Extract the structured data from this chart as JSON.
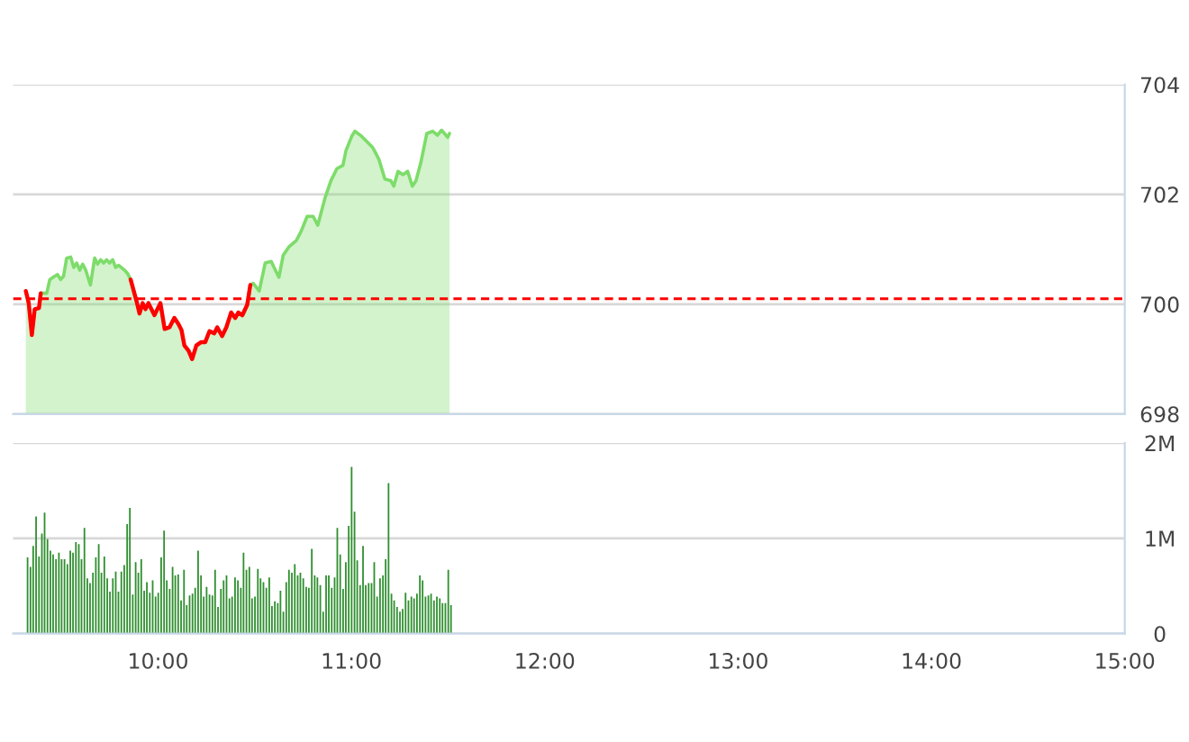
{
  "chart_data": [
    {
      "type": "area",
      "xlim": [
        9.25,
        15
      ],
      "ylim": [
        698,
        704
      ],
      "yticks": [
        698,
        700,
        702,
        704
      ],
      "tick_labels": "y",
      "grid": "y",
      "ref_lines": [
        {
          "axis": "y",
          "value": 700.1,
          "color": "#ff0000",
          "line_style": "dashed"
        }
      ],
      "series": [
        {
          "color": "#7ddc6a",
          "x": [
            9.316,
            9.331,
            9.347,
            9.362,
            9.384,
            9.393,
            9.424,
            9.44,
            9.465,
            9.48,
            9.496,
            9.511,
            9.527,
            9.548,
            9.564,
            9.579,
            9.595,
            9.61,
            9.626,
            9.65,
            9.672,
            9.687,
            9.703,
            9.718,
            9.734,
            9.749,
            9.765,
            9.78,
            9.796,
            9.827,
            9.842,
            9.858,
            9.889,
            9.904,
            9.92,
            9.935,
            9.95,
            9.981,
            10.012,
            10.034,
            10.059,
            10.084,
            10.105,
            10.121,
            10.136,
            10.158,
            10.176,
            10.198,
            10.223,
            10.244,
            10.266,
            10.291,
            10.306,
            10.331,
            10.353,
            10.378,
            10.399,
            10.415,
            10.436,
            10.461,
            10.477,
            10.492,
            10.523,
            10.554,
            10.585,
            10.6,
            10.625,
            10.647,
            10.678,
            10.715,
            10.74,
            10.771,
            10.802,
            10.826,
            10.863,
            10.894,
            10.925,
            10.956,
            10.972,
            11.003,
            11.018,
            11.049,
            11.08,
            11.111,
            11.142,
            11.173,
            11.204,
            11.219,
            11.241,
            11.266,
            11.291,
            11.315,
            11.334,
            11.359,
            11.39,
            11.421,
            11.445,
            11.467,
            11.498,
            11.507
          ],
          "values": [
            700.24,
            700.02,
            699.44,
            699.91,
            699.93,
            700.2,
            700.2,
            700.45,
            700.51,
            700.54,
            700.45,
            700.51,
            700.84,
            700.86,
            700.67,
            700.75,
            700.62,
            700.73,
            700.62,
            700.35,
            700.84,
            700.73,
            700.81,
            700.75,
            700.81,
            700.75,
            700.81,
            700.67,
            700.71,
            700.62,
            700.56,
            700.45,
            700.05,
            699.83,
            700.02,
            699.91,
            700.02,
            699.8,
            700.02,
            699.55,
            699.58,
            699.75,
            699.64,
            699.53,
            699.25,
            699.15,
            699.0,
            699.25,
            699.31,
            699.31,
            699.51,
            699.47,
            699.58,
            699.42,
            699.58,
            699.85,
            699.75,
            699.85,
            699.8,
            699.99,
            700.35,
            700.38,
            700.24,
            700.75,
            700.78,
            700.67,
            700.49,
            700.89,
            701.05,
            701.16,
            701.33,
            701.6,
            701.6,
            701.44,
            701.93,
            702.25,
            702.47,
            702.53,
            702.8,
            703.07,
            703.15,
            703.07,
            702.96,
            702.85,
            702.64,
            702.28,
            702.25,
            702.15,
            702.42,
            702.36,
            702.42,
            702.15,
            702.25,
            702.58,
            703.11,
            703.15,
            703.08,
            703.17,
            703.04,
            703.11
          ]
        },
        {
          "type": "line",
          "color": "#ff0000",
          "x": [
            9.316,
            9.331,
            9.347,
            9.362,
            9.384,
            9.393,
            9.424,
            9.44,
            9.465,
            9.48,
            9.496,
            9.511,
            9.527,
            9.548,
            9.564,
            9.579,
            9.595,
            9.61,
            9.626,
            9.65,
            9.672,
            9.687,
            9.703,
            9.718,
            9.734,
            9.749,
            9.765,
            9.78,
            9.796,
            9.827,
            9.842,
            9.858,
            9.889,
            9.904,
            9.92,
            9.935,
            9.95,
            9.981,
            10.012,
            10.034,
            10.059,
            10.084,
            10.105,
            10.121,
            10.136,
            10.158,
            10.176,
            10.198,
            10.223,
            10.244,
            10.266,
            10.291,
            10.306,
            10.331,
            10.353,
            10.378,
            10.399,
            10.415,
            10.436,
            10.461,
            10.477
          ],
          "values": [
            700.24,
            700.02,
            699.44,
            699.91,
            699.93,
            700.2,
            null,
            null,
            null,
            null,
            null,
            null,
            null,
            null,
            null,
            null,
            null,
            null,
            null,
            null,
            null,
            null,
            null,
            null,
            null,
            null,
            null,
            null,
            null,
            null,
            null,
            700.45,
            700.05,
            699.83,
            700.02,
            699.91,
            700.02,
            699.8,
            700.02,
            699.55,
            699.58,
            699.75,
            699.64,
            699.53,
            699.25,
            699.15,
            699.0,
            699.25,
            699.31,
            699.31,
            699.51,
            699.47,
            699.58,
            699.42,
            699.58,
            699.85,
            699.75,
            699.85,
            699.8,
            699.99,
            700.35
          ]
        }
      ]
    },
    {
      "type": "bar",
      "xlim": [
        9.25,
        15
      ],
      "xticks": [
        {
          "value": 10,
          "label": "10:00"
        },
        {
          "value": 11,
          "label": "11:00"
        },
        {
          "value": 12,
          "label": "12:00"
        },
        {
          "value": 13,
          "label": "13:00"
        },
        {
          "value": 14,
          "label": "14:00"
        },
        {
          "value": 15,
          "label": "15:00"
        }
      ],
      "ylim": [
        0,
        2
      ],
      "yticks": [
        0,
        {
          "value": 1,
          "label": "1M"
        },
        {
          "value": 2,
          "label": "2M"
        }
      ],
      "grid": "y",
      "series": [
        {
          "color": "#2f8f2f",
          "x": [
            9.325,
            9.34,
            9.354,
            9.369,
            9.384,
            9.399,
            9.413,
            9.428,
            9.443,
            9.457,
            9.472,
            9.487,
            9.501,
            9.516,
            9.531,
            9.546,
            9.56,
            9.575,
            9.59,
            9.604,
            9.619,
            9.634,
            9.648,
            9.663,
            9.678,
            9.693,
            9.707,
            9.722,
            9.737,
            9.751,
            9.766,
            9.781,
            9.795,
            9.81,
            9.825,
            9.84,
            9.854,
            9.869,
            9.884,
            9.898,
            9.913,
            9.928,
            9.942,
            9.957,
            9.972,
            9.987,
            10.001,
            10.016,
            10.031,
            10.045,
            10.06,
            10.075,
            10.089,
            10.104,
            10.119,
            10.134,
            10.148,
            10.163,
            10.178,
            10.192,
            10.207,
            10.222,
            10.236,
            10.251,
            10.266,
            10.281,
            10.295,
            10.31,
            10.325,
            10.339,
            10.354,
            10.369,
            10.383,
            10.398,
            10.413,
            10.428,
            10.442,
            10.457,
            10.472,
            10.486,
            10.501,
            10.516,
            10.53,
            10.545,
            10.56,
            10.575,
            10.589,
            10.604,
            10.619,
            10.633,
            10.648,
            10.663,
            10.677,
            10.692,
            10.707,
            10.722,
            10.736,
            10.751,
            10.766,
            10.78,
            10.795,
            10.81,
            10.824,
            10.839,
            10.854,
            10.869,
            10.883,
            10.898,
            10.913,
            10.927,
            10.942,
            10.957,
            10.971,
            10.986,
            11.001,
            11.016,
            11.03,
            11.045,
            11.06,
            11.074,
            11.089,
            11.104,
            11.118,
            11.133,
            11.148,
            11.163,
            11.177,
            11.192,
            11.207,
            11.221,
            11.236,
            11.251,
            11.265,
            11.28,
            11.295,
            11.31,
            11.324,
            11.339,
            11.354,
            11.368,
            11.383,
            11.398,
            11.412,
            11.427,
            11.442,
            11.457,
            11.471,
            11.486,
            11.501,
            11.515
          ],
          "values": [
            0.8,
            0.7,
            0.92,
            1.23,
            0.81,
            1.05,
            1.27,
            0.99,
            0.87,
            0.83,
            0.78,
            0.85,
            0.78,
            0.78,
            0.73,
            0.87,
            0.85,
            0.96,
            0.94,
            0.78,
            1.11,
            0.58,
            0.53,
            0.64,
            0.8,
            0.94,
            0.64,
            0.81,
            0.58,
            0.44,
            0.58,
            0.65,
            0.44,
            0.65,
            0.72,
            1.15,
            1.32,
            0.41,
            0.75,
            0.64,
            0.78,
            0.45,
            0.54,
            0.43,
            0.56,
            0.39,
            0.43,
            0.8,
            1.08,
            0.56,
            0.47,
            0.7,
            0.61,
            0.62,
            0.35,
            0.67,
            0.3,
            0.4,
            0.42,
            0.48,
            0.87,
            0.61,
            0.39,
            0.49,
            0.41,
            0.4,
            0.67,
            0.28,
            0.47,
            0.56,
            0.61,
            0.37,
            0.39,
            0.59,
            0.56,
            0.48,
            0.85,
            0.67,
            0.7,
            0.37,
            0.39,
            0.68,
            0.58,
            0.54,
            0.48,
            0.59,
            0.29,
            0.34,
            0.32,
            0.45,
            0.23,
            0.54,
            0.67,
            0.64,
            0.73,
            0.61,
            0.64,
            0.58,
            0.49,
            0.48,
            0.89,
            0.61,
            0.59,
            0.51,
            0.23,
            0.61,
            0.61,
            0.48,
            0.59,
            1.11,
            0.83,
            0.47,
            0.75,
            1.13,
            1.75,
            1.28,
            0.77,
            0.51,
            0.92,
            0.51,
            0.53,
            0.53,
            0.75,
            0.39,
            0.58,
            0.61,
            0.78,
            1.58,
            0.42,
            0.35,
            0.28,
            0.23,
            0.26,
            0.43,
            0.35,
            0.39,
            0.37,
            0.42,
            0.61,
            0.56,
            0.39,
            0.4,
            0.42,
            0.35,
            0.39,
            0.37,
            0.32,
            0.32,
            0.67,
            0.3
          ]
        }
      ]
    }
  ]
}
